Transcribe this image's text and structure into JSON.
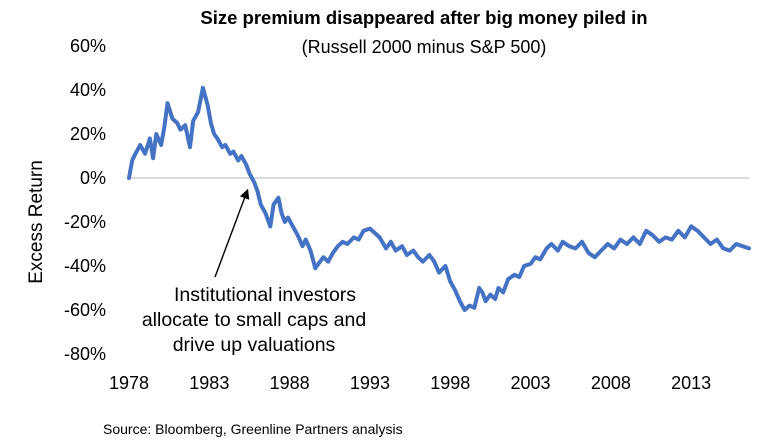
{
  "chart_data": {
    "type": "line",
    "title": "Size premium disappeared after big money piled in",
    "subtitle": "(Russell 2000 minus S&P 500)",
    "xlabel": "",
    "ylabel": "Excess Return",
    "xlim": [
      1978,
      2016.6
    ],
    "ylim": [
      -80,
      60
    ],
    "x_ticks": [
      1978,
      1983,
      1988,
      1993,
      1998,
      2003,
      2008,
      2013
    ],
    "x_tick_labels": [
      "1978",
      "1983",
      "1988",
      "1993",
      "1998",
      "2003",
      "2008",
      "2013"
    ],
    "y_ticks": [
      60,
      40,
      20,
      0,
      -20,
      -40,
      -60,
      -80
    ],
    "y_tick_labels": [
      "60%",
      "40%",
      "20%",
      "0%",
      "-20%",
      "-40%",
      "-60%",
      "-80%"
    ],
    "grid": false,
    "series": [
      {
        "name": "Russell 2000 minus S&P 500",
        "color": "#4472c4",
        "x": [
          1978.0,
          1978.2,
          1978.4,
          1978.7,
          1979.0,
          1979.3,
          1979.5,
          1979.7,
          1980.0,
          1980.2,
          1980.4,
          1980.7,
          1981.0,
          1981.2,
          1981.5,
          1981.8,
          1982.0,
          1982.3,
          1982.6,
          1982.9,
          1983.1,
          1983.3,
          1983.5,
          1983.8,
          1984.0,
          1984.3,
          1984.5,
          1984.8,
          1985.0,
          1985.3,
          1985.5,
          1985.8,
          1986.0,
          1986.2,
          1986.5,
          1986.8,
          1987.0,
          1987.3,
          1987.5,
          1987.7,
          1987.9,
          1988.2,
          1988.5,
          1988.8,
          1989.0,
          1989.3,
          1989.6,
          1989.9,
          1990.1,
          1990.4,
          1990.7,
          1991.0,
          1991.3,
          1991.6,
          1992.0,
          1992.3,
          1992.6,
          1993.0,
          1993.3,
          1993.6,
          1994.0,
          1994.3,
          1994.6,
          1995.0,
          1995.3,
          1995.7,
          1996.0,
          1996.3,
          1996.7,
          1997.0,
          1997.3,
          1997.7,
          1998.0,
          1998.3,
          1998.6,
          1998.9,
          1999.2,
          1999.5,
          1999.8,
          2000.0,
          2000.2,
          2000.5,
          2000.8,
          2001.0,
          2001.3,
          2001.6,
          2002.0,
          2002.3,
          2002.6,
          2003.0,
          2003.3,
          2003.6,
          2004.0,
          2004.3,
          2004.7,
          2005.0,
          2005.4,
          2005.8,
          2006.2,
          2006.6,
          2007.0,
          2007.4,
          2007.8,
          2008.2,
          2008.6,
          2009.0,
          2009.4,
          2009.8,
          2010.2,
          2010.6,
          2011.0,
          2011.4,
          2011.8,
          2012.2,
          2012.6,
          2013.0,
          2013.4,
          2013.8,
          2014.2,
          2014.6,
          2015.0,
          2015.4,
          2015.8,
          2016.2,
          2016.6
        ],
        "values": [
          0,
          8,
          11,
          15,
          11,
          18,
          9,
          20,
          15,
          23,
          34,
          27,
          25,
          22,
          24,
          14,
          26,
          30,
          41,
          33,
          25,
          20,
          18,
          14,
          15,
          11,
          12,
          8,
          10,
          6,
          2,
          -2,
          -6,
          -12,
          -16,
          -22,
          -12,
          -9,
          -16,
          -20,
          -18,
          -22,
          -26,
          -31,
          -28,
          -33,
          -41,
          -38,
          -36,
          -38,
          -34,
          -31,
          -29,
          -30,
          -27,
          -28,
          -24,
          -23,
          -25,
          -27,
          -32,
          -29,
          -33,
          -31,
          -35,
          -33,
          -36,
          -38,
          -35,
          -38,
          -43,
          -40,
          -47,
          -51,
          -56,
          -60,
          -58,
          -59,
          -50,
          -52,
          -56,
          -53,
          -55,
          -50,
          -52,
          -46,
          -44,
          -45,
          -40,
          -39,
          -36,
          -37,
          -32,
          -30,
          -33,
          -29,
          -31,
          -32,
          -29,
          -34,
          -36,
          -33,
          -30,
          -32,
          -28,
          -30,
          -27,
          -30,
          -24,
          -26,
          -29,
          -27,
          -28,
          -24,
          -27,
          -22,
          -24,
          -27,
          -30,
          -28,
          -32,
          -33,
          -30,
          -31,
          -32
        ]
      }
    ],
    "annotation": {
      "lines": [
        "Institutional investors",
        "allocate to small caps and",
        "drive up valuations"
      ],
      "arrow_target": [
        1985.3,
        -7
      ]
    },
    "source": "Source: Bloomberg, Greenline Partners analysis"
  }
}
